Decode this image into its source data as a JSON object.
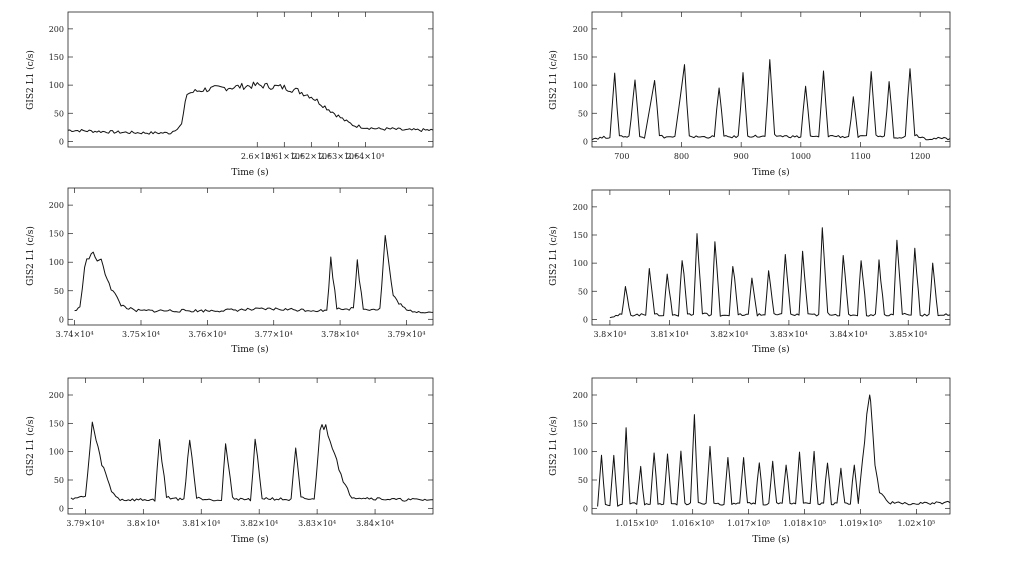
{
  "chart_data": [
    {
      "type": "line",
      "panel": "top-left",
      "xlabel": "Time (s)",
      "ylabel": "GIS2 L1 (c/s)",
      "xlim": [
        25930,
        26065
      ],
      "ylim": [
        -10,
        230
      ],
      "xticks": [
        {
          "v": 26000,
          "label": "2.6×10⁴"
        },
        {
          "v": 26010,
          "label": "2.61×10⁴"
        },
        {
          "v": 26020,
          "label": "2.62×10⁴"
        },
        {
          "v": 26030,
          "label": "2.63×10⁴"
        },
        {
          "v": 26040,
          "label": "2.64×10⁴"
        }
      ],
      "yticks": [
        0,
        50,
        100,
        150,
        200
      ],
      "x": [
        25930,
        25940,
        25950,
        25960,
        25968,
        25972,
        25974,
        25980,
        25990,
        26000,
        26010,
        26015,
        26020,
        26025,
        26030,
        26033,
        26036,
        26040,
        26045,
        26050,
        26055,
        26060,
        26065
      ],
      "y": [
        20,
        18,
        16,
        15,
        15,
        30,
        85,
        92,
        96,
        100,
        96,
        90,
        80,
        62,
        45,
        35,
        28,
        25,
        22,
        22,
        20,
        20,
        20
      ]
    },
    {
      "type": "line",
      "panel": "top-right",
      "xlabel": "Time (s)",
      "ylabel": "GIS2 L1 (c/s)",
      "xlim": [
        650,
        1250
      ],
      "ylim": [
        -10,
        230
      ],
      "xticks": [
        {
          "v": 700,
          "label": "700"
        },
        {
          "v": 800,
          "label": "800"
        },
        {
          "v": 900,
          "label": "900"
        },
        {
          "v": 1000,
          "label": "1000"
        },
        {
          "v": 1100,
          "label": "1100"
        },
        {
          "v": 1200,
          "label": "1200"
        }
      ],
      "yticks": [
        0,
        50,
        100,
        150,
        200
      ],
      "x": [
        650,
        680,
        688,
        696,
        712,
        722,
        730,
        738,
        755,
        763,
        771,
        789,
        805,
        813,
        821,
        855,
        863,
        871,
        895,
        903,
        911,
        940,
        948,
        956,
        1000,
        1008,
        1016,
        1030,
        1038,
        1046,
        1080,
        1088,
        1096,
        1110,
        1118,
        1126,
        1140,
        1148,
        1156,
        1175,
        1183,
        1191,
        1210,
        1250
      ],
      "y": [
        5,
        8,
        115,
        10,
        8,
        110,
        8,
        8,
        112,
        10,
        8,
        8,
        130,
        10,
        8,
        8,
        100,
        8,
        8,
        120,
        10,
        8,
        138,
        10,
        8,
        100,
        8,
        8,
        120,
        10,
        8,
        75,
        8,
        8,
        125,
        10,
        8,
        108,
        8,
        8,
        135,
        12,
        5,
        5
      ]
    },
    {
      "type": "line",
      "panel": "middle-left",
      "xlabel": "Time (s)",
      "ylabel": "GIS2 L1 (c/s)",
      "xlim": [
        37390,
        37940
      ],
      "ylim": [
        -10,
        230
      ],
      "xticks": [
        {
          "v": 37400,
          "label": "3.74×10⁴"
        },
        {
          "v": 37500,
          "label": "3.75×10⁴"
        },
        {
          "v": 37600,
          "label": "3.76×10⁴"
        },
        {
          "v": 37700,
          "label": "3.77×10⁴"
        },
        {
          "v": 37800,
          "label": "3.78×10⁴"
        },
        {
          "v": 37900,
          "label": "3.79×10⁴"
        }
      ],
      "yticks": [
        0,
        50,
        100,
        150,
        200
      ],
      "x": [
        37400,
        37408,
        37415,
        37425,
        37440,
        37455,
        37470,
        37490,
        37520,
        37600,
        37700,
        37780,
        37786,
        37795,
        37820,
        37826,
        37835,
        37860,
        37868,
        37880,
        37900,
        37940
      ],
      "y": [
        15,
        20,
        95,
        115,
        100,
        55,
        25,
        15,
        15,
        15,
        18,
        15,
        105,
        20,
        18,
        100,
        18,
        18,
        145,
        40,
        15,
        12
      ]
    },
    {
      "type": "line",
      "panel": "middle-right",
      "xlabel": "Time (s)",
      "ylabel": "GIS2 L1 (c/s)",
      "xlim": [
        37970,
        38570
      ],
      "ylim": [
        -10,
        230
      ],
      "xticks": [
        {
          "v": 38000,
          "label": "3.8×10⁴"
        },
        {
          "v": 38100,
          "label": "3.81×10⁴"
        },
        {
          "v": 38200,
          "label": "3.82×10⁴"
        },
        {
          "v": 38300,
          "label": "3.83×10⁴"
        },
        {
          "v": 38400,
          "label": "3.84×10⁴"
        },
        {
          "v": 38500,
          "label": "3.85×10⁴"
        }
      ],
      "yticks": [
        0,
        50,
        100,
        150,
        200
      ],
      "x": [
        38000,
        38020,
        38026,
        38035,
        38060,
        38066,
        38075,
        38090,
        38096,
        38105,
        38115,
        38121,
        38130,
        38140,
        38146,
        38155,
        38170,
        38176,
        38185,
        38200,
        38206,
        38215,
        38232,
        38238,
        38247,
        38260,
        38266,
        38275,
        38288,
        38294,
        38303,
        38317,
        38323,
        38332,
        38350,
        38356,
        38365,
        38385,
        38391,
        38400,
        38415,
        38421,
        38430,
        38445,
        38451,
        38460,
        38475,
        38481,
        38490,
        38505,
        38511,
        38520,
        38535,
        38541,
        38550,
        38570
      ],
      "y": [
        5,
        8,
        55,
        8,
        8,
        95,
        8,
        8,
        80,
        8,
        8,
        110,
        10,
        8,
        150,
        10,
        8,
        135,
        8,
        8,
        100,
        8,
        8,
        72,
        8,
        8,
        88,
        8,
        8,
        118,
        8,
        8,
        118,
        8,
        8,
        160,
        10,
        8,
        110,
        8,
        8,
        110,
        8,
        8,
        105,
        8,
        8,
        140,
        10,
        8,
        130,
        8,
        8,
        95,
        8,
        8
      ]
    },
    {
      "type": "line",
      "panel": "bottom-left",
      "xlabel": "Time (s)",
      "ylabel": "GIS2 L1 (c/s)",
      "xlim": [
        37870,
        38500
      ],
      "ylim": [
        -10,
        230
      ],
      "xticks": [
        {
          "v": 37900,
          "label": "3.79×10⁴"
        },
        {
          "v": 38000,
          "label": "3.8×10⁴"
        },
        {
          "v": 38100,
          "label": "3.81×10⁴"
        },
        {
          "v": 38200,
          "label": "3.82×10⁴"
        },
        {
          "v": 38300,
          "label": "3.83×10⁴"
        },
        {
          "v": 38400,
          "label": "3.84×10⁴"
        }
      ],
      "yticks": [
        0,
        50,
        100,
        150,
        200
      ],
      "x": [
        37875,
        37900,
        37912,
        37925,
        37945,
        37960,
        38020,
        38028,
        38040,
        38070,
        38080,
        38092,
        38135,
        38142,
        38154,
        38185,
        38193,
        38205,
        38255,
        38263,
        38272,
        38295,
        38305,
        38315,
        38330,
        38345,
        38360,
        38390,
        38440,
        38500
      ],
      "y": [
        18,
        20,
        150,
        90,
        30,
        15,
        15,
        120,
        20,
        15,
        125,
        18,
        15,
        115,
        18,
        15,
        120,
        18,
        15,
        105,
        18,
        15,
        140,
        145,
        100,
        45,
        20,
        18,
        15,
        15
      ]
    },
    {
      "type": "line",
      "panel": "bottom-right",
      "xlabel": "Time (s)",
      "ylabel": "GIS2 L1 (c/s)",
      "xlim": [
        101420,
        102060
      ],
      "ylim": [
        -10,
        230
      ],
      "xticks": [
        {
          "v": 101500,
          "label": "1.015×10⁵"
        },
        {
          "v": 101600,
          "label": "1.016×10⁵"
        },
        {
          "v": 101700,
          "label": "1.017×10⁵"
        },
        {
          "v": 101800,
          "label": "1.018×10⁵"
        },
        {
          "v": 101900,
          "label": "1.019×10⁵"
        },
        {
          "v": 102000,
          "label": "1.02×10⁵"
        }
      ],
      "yticks": [
        0,
        50,
        100,
        150,
        200
      ],
      "x": [
        101430,
        101437,
        101444,
        101452,
        101459,
        101466,
        101474,
        101481,
        101488,
        101500,
        101507,
        101514,
        101524,
        101531,
        101538,
        101548,
        101555,
        101562,
        101572,
        101579,
        101586,
        101596,
        101603,
        101610,
        101624,
        101631,
        101638,
        101656,
        101663,
        101670,
        101684,
        101691,
        101698,
        101712,
        101719,
        101726,
        101736,
        101743,
        101750,
        101760,
        101767,
        101774,
        101784,
        101791,
        101798,
        101810,
        101817,
        101824,
        101834,
        101841,
        101848,
        101858,
        101865,
        101872,
        101882,
        101889,
        101896,
        101915,
        101918,
        101926,
        101934,
        101950,
        101990,
        102060
      ],
      "y": [
        5,
        90,
        5,
        5,
        90,
        5,
        5,
        135,
        8,
        8,
        70,
        8,
        8,
        100,
        8,
        8,
        95,
        8,
        8,
        100,
        8,
        8,
        160,
        10,
        8,
        115,
        8,
        8,
        85,
        8,
        8,
        85,
        8,
        8,
        85,
        8,
        8,
        85,
        8,
        8,
        80,
        8,
        8,
        105,
        8,
        8,
        95,
        8,
        8,
        85,
        8,
        8,
        70,
        8,
        8,
        80,
        8,
        200,
        190,
        80,
        30,
        10,
        8,
        10
      ]
    }
  ]
}
